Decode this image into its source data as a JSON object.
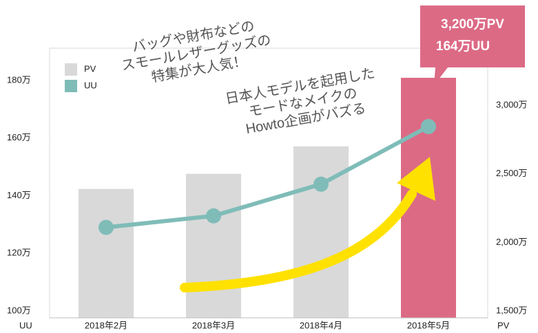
{
  "chart_data": {
    "type": "bar_line",
    "categories": [
      "2018年2月",
      "2018年3月",
      "2018年4月",
      "2018年5月"
    ],
    "series": [
      {
        "name": "PV",
        "type": "bar",
        "axis": "y2",
        "color": "#d9d9d9",
        "colors": [
          "#d9d9d9",
          "#d9d9d9",
          "#d9d9d9",
          "#dc6a85"
        ],
        "values": [
          2390,
          2500,
          2700,
          3200
        ],
        "value_labels": [
          null,
          null,
          null,
          "3,200万PV"
        ]
      },
      {
        "name": "UU",
        "type": "line",
        "axis": "y",
        "color": "#7fbcb8",
        "values": [
          129,
          133,
          144,
          164
        ],
        "value_labels": [
          null,
          null,
          null,
          "164万UU"
        ]
      }
    ],
    "ylim": [
      97.6,
      191.2
    ],
    "yticks": [
      {
        "value": 100,
        "label": "100万"
      },
      {
        "value": 120,
        "label": "120万"
      },
      {
        "value": 140,
        "label": "140万"
      },
      {
        "value": 160,
        "label": "160万"
      },
      {
        "value": 180,
        "label": "180万"
      }
    ],
    "y2lim": [
      1450,
      3416
    ],
    "y2ticks": [
      {
        "value": 1500,
        "label": "1,500万"
      },
      {
        "value": 2000,
        "label": "2,000万"
      },
      {
        "value": 2500,
        "label": "2,500万"
      },
      {
        "value": 3000,
        "label": "3,000万"
      }
    ],
    "ylabel": "UU",
    "y2label": "PV",
    "legend": "upper left",
    "annotations": [
      {
        "lines": [
          "バッグや財布などの",
          "スモールレザーグッズの",
          "特集が大人気！"
        ]
      },
      {
        "lines": [
          "日本人モデルを起用した",
          "モードなメイクの",
          "Howto企画がバズる"
        ]
      }
    ]
  }
}
